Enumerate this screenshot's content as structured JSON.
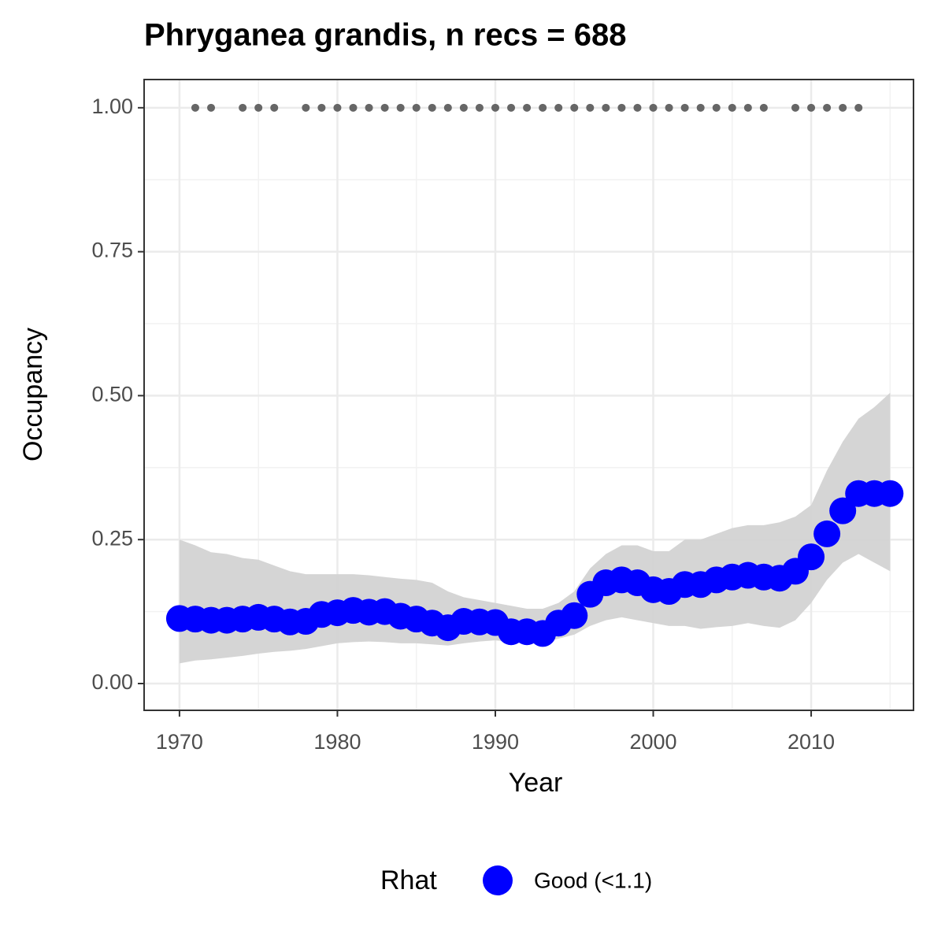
{
  "chart_data": {
    "type": "scatter",
    "title": "Phryganea grandis, n recs = 688",
    "x_label": "Year",
    "y_label": "Occupancy",
    "x": [
      1970,
      1971,
      1972,
      1973,
      1974,
      1975,
      1976,
      1977,
      1978,
      1979,
      1980,
      1981,
      1982,
      1983,
      1984,
      1985,
      1986,
      1987,
      1988,
      1989,
      1990,
      1991,
      1992,
      1993,
      1994,
      1995,
      1996,
      1997,
      1998,
      1999,
      2000,
      2001,
      2002,
      2003,
      2004,
      2005,
      2006,
      2007,
      2008,
      2009,
      2010,
      2011,
      2012,
      2013,
      2014,
      2015
    ],
    "series": [
      {
        "name": "Good (<1.1)",
        "color": "#0000ff",
        "values": [
          0.113,
          0.112,
          0.11,
          0.11,
          0.112,
          0.115,
          0.112,
          0.107,
          0.108,
          0.12,
          0.123,
          0.127,
          0.124,
          0.125,
          0.117,
          0.112,
          0.105,
          0.097,
          0.108,
          0.107,
          0.106,
          0.09,
          0.09,
          0.087,
          0.105,
          0.118,
          0.155,
          0.175,
          0.18,
          0.175,
          0.163,
          0.16,
          0.172,
          0.172,
          0.18,
          0.185,
          0.188,
          0.185,
          0.183,
          0.195,
          0.22,
          0.26,
          0.3,
          0.33,
          0.33,
          0.33
        ]
      }
    ],
    "ribbon": {
      "color": "#d3d3d3",
      "lower": [
        0.035,
        0.04,
        0.042,
        0.045,
        0.048,
        0.052,
        0.055,
        0.057,
        0.06,
        0.065,
        0.07,
        0.072,
        0.073,
        0.072,
        0.07,
        0.07,
        0.068,
        0.066,
        0.07,
        0.073,
        0.075,
        0.072,
        0.07,
        0.07,
        0.078,
        0.085,
        0.1,
        0.11,
        0.115,
        0.11,
        0.105,
        0.1,
        0.1,
        0.095,
        0.098,
        0.1,
        0.105,
        0.1,
        0.097,
        0.11,
        0.14,
        0.18,
        0.21,
        0.225,
        0.21,
        0.195
      ],
      "upper": [
        0.25,
        0.24,
        0.228,
        0.225,
        0.218,
        0.215,
        0.205,
        0.195,
        0.19,
        0.19,
        0.19,
        0.19,
        0.188,
        0.185,
        0.182,
        0.18,
        0.175,
        0.16,
        0.15,
        0.145,
        0.14,
        0.135,
        0.13,
        0.13,
        0.14,
        0.16,
        0.2,
        0.225,
        0.24,
        0.24,
        0.23,
        0.23,
        0.25,
        0.25,
        0.26,
        0.27,
        0.275,
        0.275,
        0.28,
        0.29,
        0.31,
        0.37,
        0.42,
        0.46,
        0.48,
        0.505
      ]
    },
    "records": {
      "color": "#666666",
      "x": [
        1971,
        1972,
        1974,
        1975,
        1976,
        1978,
        1979,
        1980,
        1981,
        1982,
        1983,
        1984,
        1985,
        1986,
        1987,
        1988,
        1989,
        1990,
        1991,
        1992,
        1993,
        1994,
        1995,
        1996,
        1997,
        1998,
        1999,
        2000,
        2001,
        2002,
        2003,
        2004,
        2005,
        2006,
        2007,
        2009,
        2010,
        2011,
        2012,
        2013
      ],
      "values": [
        1,
        1,
        1,
        1,
        1,
        1,
        1,
        1,
        1,
        1,
        1,
        1,
        1,
        1,
        1,
        1,
        1,
        1,
        1,
        1,
        1,
        1,
        1,
        1,
        1,
        1,
        1,
        1,
        1,
        1,
        1,
        1,
        1,
        1,
        1,
        1,
        1,
        1,
        1,
        1
      ]
    },
    "legend_title": "Rhat",
    "xlim": [
      1967.76,
      2016.48
    ],
    "ylim": [
      -0.0465,
      1.049
    ],
    "xticks": [
      1970,
      1980,
      1990,
      2000,
      2010
    ],
    "yticks": [
      {
        "value": 0,
        "label": "0.00"
      },
      {
        "value": 0.25,
        "label": "0.25"
      },
      {
        "value": 0.5,
        "label": "0.50"
      },
      {
        "value": 0.75,
        "label": "0.75"
      },
      {
        "value": 1,
        "label": "1.00"
      }
    ],
    "grid": true
  }
}
